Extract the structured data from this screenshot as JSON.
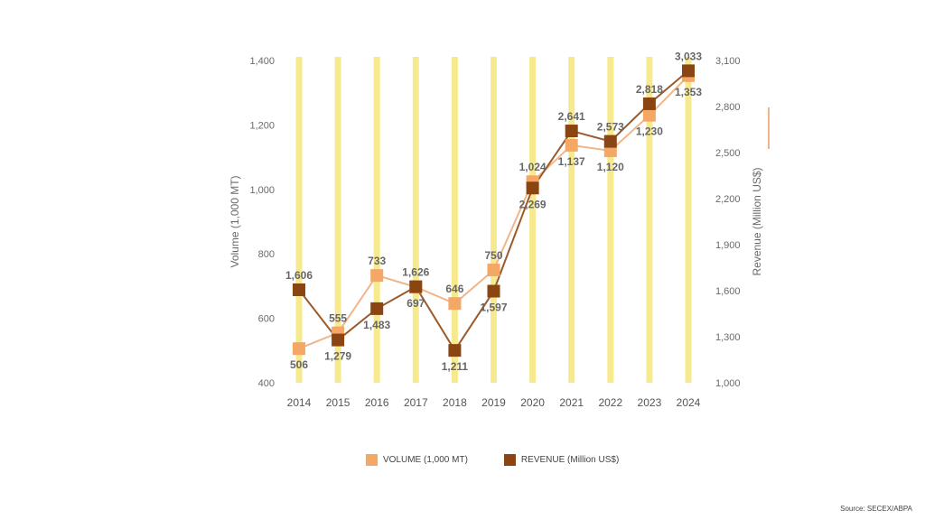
{
  "chart_data": {
    "type": "line",
    "categories": [
      "2014",
      "2015",
      "2016",
      "2017",
      "2018",
      "2019",
      "2020",
      "2021",
      "2022",
      "2023",
      "2024"
    ],
    "y_left": {
      "label": "Volume (1,000 MT)",
      "min": 400,
      "max": 1400,
      "ticks": [
        "400",
        "600",
        "800",
        "1,000",
        "1,200",
        "1,400"
      ]
    },
    "y_right": {
      "label": "Revenue (Million US$)",
      "min": 1000,
      "max": 3100,
      "ticks": [
        "1,000",
        "1,300",
        "1,600",
        "1,900",
        "2,200",
        "2,500",
        "2,800",
        "3,100"
      ]
    },
    "series": [
      {
        "name": "VOLUME (1,000 MT)",
        "axis": "left",
        "color": "#f5a766",
        "line_color": "#f0b58a",
        "values": [
          506,
          555,
          733,
          697,
          646,
          750,
          1024,
          1137,
          1120,
          1230,
          1353
        ],
        "labels": [
          "506",
          "555",
          "733",
          "697",
          "646",
          "750",
          "1,024",
          "1,137",
          "1,120",
          "1,230",
          "1,353"
        ]
      },
      {
        "name": "REVENUE (Million US$)",
        "axis": "right",
        "color": "#8b4513",
        "line_color": "#9a5a2a",
        "values": [
          1606,
          1279,
          1483,
          1626,
          1211,
          1597,
          2269,
          2641,
          2573,
          2818,
          3033
        ],
        "labels": [
          "1,606",
          "1,279",
          "1,483",
          "1,626",
          "1,211",
          "1,597",
          "2,269",
          "2,641",
          "2,573",
          "2,818",
          "3,033"
        ]
      }
    ],
    "background_bars_color": "#f7ea8e",
    "grid": false,
    "legend_position": "bottom"
  },
  "source": "Source: SECEX/ABPA",
  "accent_color": "#f0b58a"
}
